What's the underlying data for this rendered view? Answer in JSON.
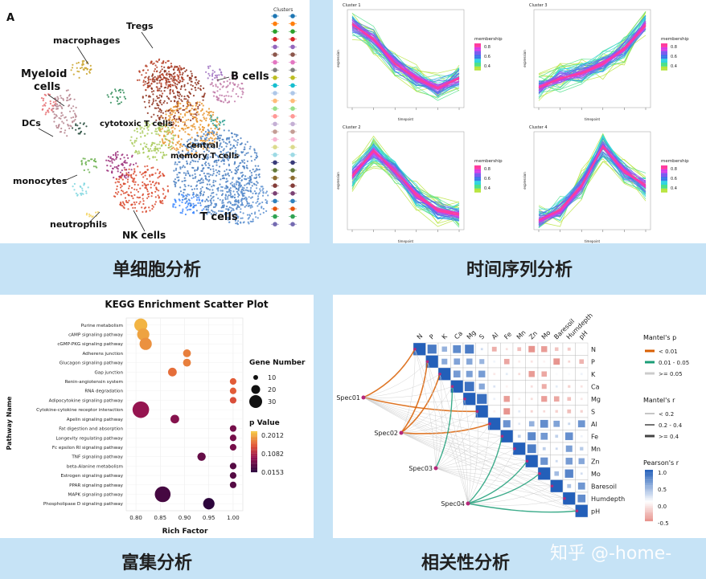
{
  "captions": {
    "single_cell": "单细胞分析",
    "time_series": "时间序列分析",
    "enrichment": "富集分析",
    "correlation": "相关性分析"
  },
  "watermark": "知乎 @-home-",
  "umap": {
    "panel_letter": "A",
    "legend_title": "Clusters",
    "labels": [
      "Tregs",
      "macrophages",
      "Myeloid",
      "cells",
      "B cells",
      "DCs",
      "cytotoxic T cells",
      "central",
      "memory T cells",
      "monocytes",
      "neutrophils",
      "T cells",
      "NK cells"
    ],
    "cluster_colors": [
      "#1f77b4",
      "#ff7f0e",
      "#2ca02c",
      "#d62728",
      "#9467bd",
      "#8c564b",
      "#e377c2",
      "#7f7f7f",
      "#bcbd22",
      "#17becf",
      "#aec7e8",
      "#ffbb78",
      "#98df8a",
      "#ff9896",
      "#c5b0d5",
      "#c49c94",
      "#f7b6d2",
      "#dbdb8d",
      "#9edae5",
      "#393b79",
      "#637939",
      "#8c6d31",
      "#843c39",
      "#7b4173",
      "#3182bd",
      "#e6550d",
      "#31a354",
      "#756bb1"
    ]
  },
  "clusters": [
    {
      "title": "Cluster 1",
      "ylabel": "expression",
      "xlabel": "timepoint",
      "legend_title": "membership",
      "legend_values": [
        "0.8",
        "0.6",
        "0.4"
      ]
    },
    {
      "title": "Cluster 3",
      "ylabel": "expression",
      "xlabel": "timepoint",
      "legend_title": "membership",
      "legend_values": [
        "0.8",
        "0.6",
        "0.4"
      ]
    },
    {
      "title": "Cluster 2",
      "ylabel": "expression",
      "xlabel": "timepoint",
      "legend_title": "membership",
      "legend_values": [
        "0.8",
        "0.6",
        "0.4"
      ]
    },
    {
      "title": "Cluster 4",
      "ylabel": "expression",
      "xlabel": "timepoint",
      "legend_title": "membership",
      "legend_values": [
        "0.8",
        "0.6",
        "0.4"
      ]
    }
  ],
  "kegg": {
    "title": "KEGG Enrichment Scatter Plot",
    "ylabel": "Pathway Name",
    "xlabel": "Rich Factor",
    "x_ticks": [
      "0.80",
      "0.85",
      "0.90",
      "0.95",
      "1.00"
    ],
    "gene_legend_title": "Gene Number",
    "gene_legend_values": [
      "10",
      "20",
      "30"
    ],
    "p_legend_title": "p Value",
    "p_legend_values": [
      "0.2012",
      "0.1082",
      "0.0153"
    ],
    "pathways": [
      {
        "name": "Purine metabolism",
        "rich": 0.81,
        "gene": 22,
        "p": 0.19
      },
      {
        "name": "cAMP signaling pathway",
        "rich": 0.815,
        "gene": 20,
        "p": 0.18
      },
      {
        "name": "cGMP-PKG signaling pathway",
        "rich": 0.82,
        "gene": 20,
        "p": 0.17
      },
      {
        "name": "Adherens junction",
        "rich": 0.905,
        "gene": 10,
        "p": 0.16
      },
      {
        "name": "Glucagon signaling pathway",
        "rich": 0.905,
        "gene": 10,
        "p": 0.16
      },
      {
        "name": "Gap junction",
        "rich": 0.875,
        "gene": 12,
        "p": 0.15
      },
      {
        "name": "Renin-angiotensin system",
        "rich": 1.0,
        "gene": 7,
        "p": 0.14
      },
      {
        "name": "RNA degradation",
        "rich": 1.0,
        "gene": 7,
        "p": 0.14
      },
      {
        "name": "Adipocytokine signaling pathway",
        "rich": 1.0,
        "gene": 7,
        "p": 0.13
      },
      {
        "name": "Cytokine-cytokine receptor interaction",
        "rich": 0.81,
        "gene": 30,
        "p": 0.08
      },
      {
        "name": "Apelin signaling pathway",
        "rich": 0.88,
        "gene": 12,
        "p": 0.07
      },
      {
        "name": "Fat digestion and absorption",
        "rich": 1.0,
        "gene": 7,
        "p": 0.06
      },
      {
        "name": "Longevity regulating pathway",
        "rich": 1.0,
        "gene": 7,
        "p": 0.06
      },
      {
        "name": "Fc epsilon RI signaling pathway",
        "rich": 1.0,
        "gene": 7,
        "p": 0.06
      },
      {
        "name": "TNF signaling pathway",
        "rich": 0.935,
        "gene": 11,
        "p": 0.05
      },
      {
        "name": "beta-Alanine metabolism",
        "rich": 1.0,
        "gene": 7,
        "p": 0.04
      },
      {
        "name": "Estrogen signaling pathway",
        "rich": 1.0,
        "gene": 7,
        "p": 0.04
      },
      {
        "name": "PPAR signaling pathway",
        "rich": 1.0,
        "gene": 7,
        "p": 0.04
      },
      {
        "name": "MAPK signaling pathway",
        "rich": 0.855,
        "gene": 28,
        "p": 0.03
      },
      {
        "name": "Phospholipase D signaling pathway",
        "rich": 0.95,
        "gene": 18,
        "p": 0.015
      }
    ]
  },
  "mantel": {
    "vars": [
      "N",
      "P",
      "K",
      "Ca",
      "Mg",
      "S",
      "Al",
      "Fe",
      "Mn",
      "Zn",
      "Mo",
      "Baresoil",
      "Humdepth",
      "pH"
    ],
    "specs": [
      "Spec01",
      "Spec02",
      "Spec03",
      "Spec04"
    ],
    "mantel_p_title": "Mantel's p",
    "mantel_p_items": [
      "< 0.01",
      "0.01 - 0.05",
      ">= 0.05"
    ],
    "mantel_r_title": "Mantel's r",
    "mantel_r_items": [
      "< 0.2",
      "0.2 - 0.4",
      ">= 0.4"
    ],
    "pearson_title": "Pearson's r",
    "pearson_ticks": [
      "1.0",
      "0.5",
      "0.0",
      "-0.5"
    ],
    "colors": {
      "p_low": "#d95f02",
      "p_mid": "#1b9e77",
      "p_high": "#cccccc"
    }
  }
}
